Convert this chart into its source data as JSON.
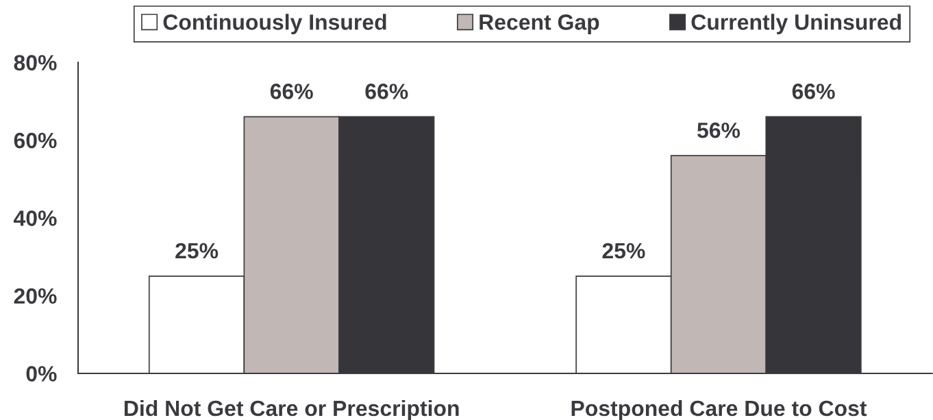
{
  "chart_data": {
    "type": "bar",
    "categories": [
      "Did Not Get Care or Prescription",
      "Postponed Care Due to Cost"
    ],
    "series": [
      {
        "name": "Continuously Insured",
        "color": "#ffffff",
        "values": [
          25,
          25
        ],
        "value_labels": [
          "25%",
          "25%"
        ]
      },
      {
        "name": "Recent Gap",
        "color": "#c1b7b4",
        "values": [
          66,
          56
        ],
        "value_labels": [
          "66%",
          "56%"
        ]
      },
      {
        "name": "Currently Uninsured",
        "color": "#36353a",
        "values": [
          66,
          66
        ],
        "value_labels": [
          "66%",
          "66%"
        ]
      }
    ],
    "ylim": [
      0,
      80
    ],
    "yticks": [
      {
        "value": 0,
        "label": "0%"
      },
      {
        "value": 20,
        "label": "20%"
      },
      {
        "value": 40,
        "label": "40%"
      },
      {
        "value": 60,
        "label": "60%"
      },
      {
        "value": 80,
        "label": "80%"
      }
    ],
    "grid": false,
    "legend": "top"
  }
}
